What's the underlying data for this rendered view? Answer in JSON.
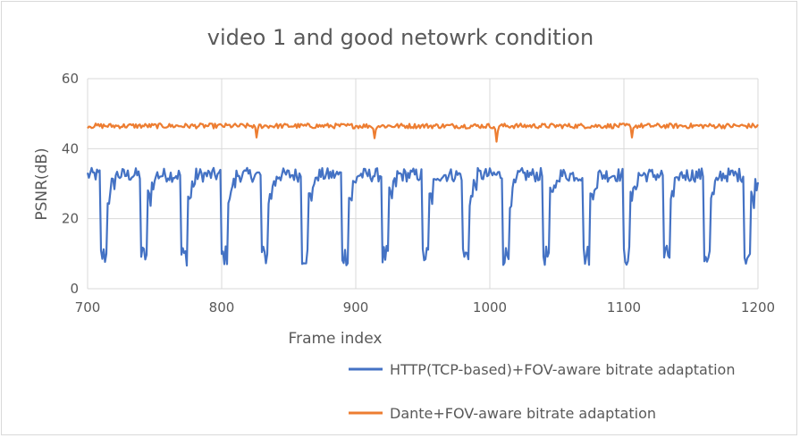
{
  "chart_data": {
    "type": "line",
    "title": "video 1  and good netowrk condition",
    "xlabel": "Frame index",
    "ylabel": "PSNR(dB)",
    "xlim": [
      700,
      1200
    ],
    "ylim": [
      0,
      60
    ],
    "xticks": [
      700,
      800,
      900,
      1000,
      1100,
      1200
    ],
    "yticks": [
      0,
      20,
      40,
      60
    ],
    "grid": true,
    "legend_position": "bottom-right",
    "series": [
      {
        "name": "HTTP(TCP-based)+FOV-aware bitrate adaptation",
        "color": "#4472c4",
        "pattern": {
          "high_psnr": 32.5,
          "low_psnr": 9.5,
          "first_drop_frame": 710,
          "period_frames": 30,
          "drop_length_frames": 5
        }
      },
      {
        "name": "Dante+FOV-aware bitrate adaptation",
        "color": "#ed7d31",
        "pattern": {
          "base_psnr": 46.5,
          "dips": [
            [
              826,
              43.2
            ],
            [
              914,
              43.0
            ],
            [
              1005,
              42.0
            ],
            [
              1106,
              43.2
            ]
          ]
        }
      }
    ]
  }
}
